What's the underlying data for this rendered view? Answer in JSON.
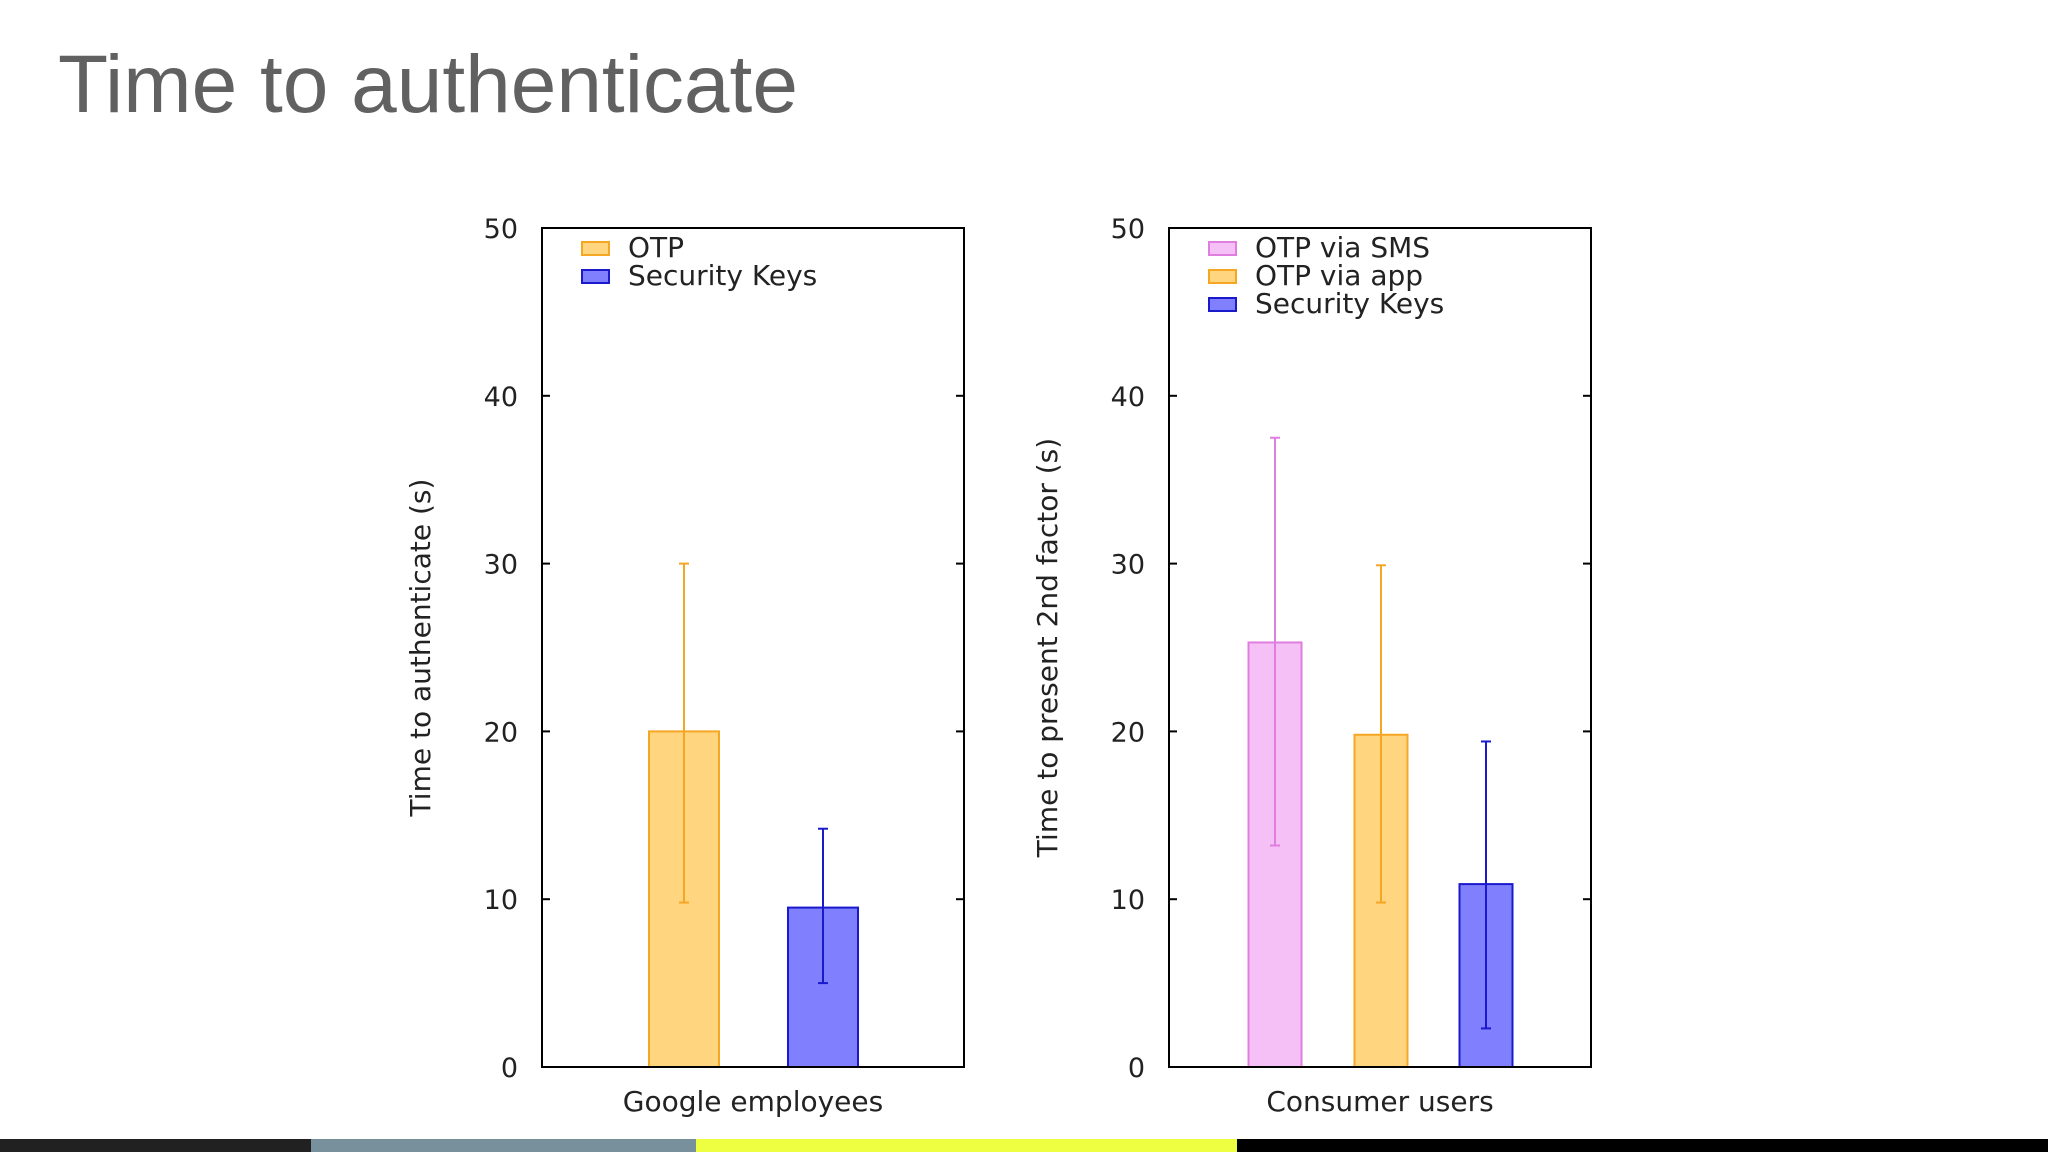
{
  "slide": {
    "title": "Time to authenticate"
  },
  "colors": {
    "title": "#616161",
    "footer": [
      "#212121",
      "#78909c",
      "#eeff41",
      "#000000"
    ],
    "footer_fractions": [
      0.152,
      0.188,
      0.264,
      0.396
    ]
  },
  "chart_data": [
    {
      "type": "bar",
      "title": "",
      "xlabel": "Google employees",
      "ylabel": "Time to authenticate (s)",
      "ylim": [
        0,
        50
      ],
      "yticks": [
        0,
        10,
        20,
        30,
        40,
        50
      ],
      "legend_position": "top-left",
      "series": [
        {
          "name": "OTP",
          "value": 20,
          "err_low": 9.8,
          "err_high": 30,
          "fill": "#ffd580",
          "stroke": "#f5a623"
        },
        {
          "name": "Security Keys",
          "value": 9.5,
          "err_low": 5,
          "err_high": 14.2,
          "fill": "#8080ff",
          "stroke": "#1a1acc"
        }
      ]
    },
    {
      "type": "bar",
      "title": "",
      "xlabel": "Consumer users",
      "ylabel": "Time to present 2nd factor (s)",
      "ylim": [
        0,
        50
      ],
      "yticks": [
        0,
        10,
        20,
        30,
        40,
        50
      ],
      "legend_position": "top-left",
      "series": [
        {
          "name": "OTP via SMS",
          "value": 25.3,
          "err_low": 13.2,
          "err_high": 37.5,
          "fill": "#f5c0f5",
          "stroke": "#e07ee0"
        },
        {
          "name": "OTP via app",
          "value": 19.8,
          "err_low": 9.8,
          "err_high": 29.9,
          "fill": "#ffd580",
          "stroke": "#f5a623"
        },
        {
          "name": "Security Keys",
          "value": 10.9,
          "err_low": 2.3,
          "err_high": 19.4,
          "fill": "#8080ff",
          "stroke": "#1a1acc"
        }
      ]
    }
  ]
}
